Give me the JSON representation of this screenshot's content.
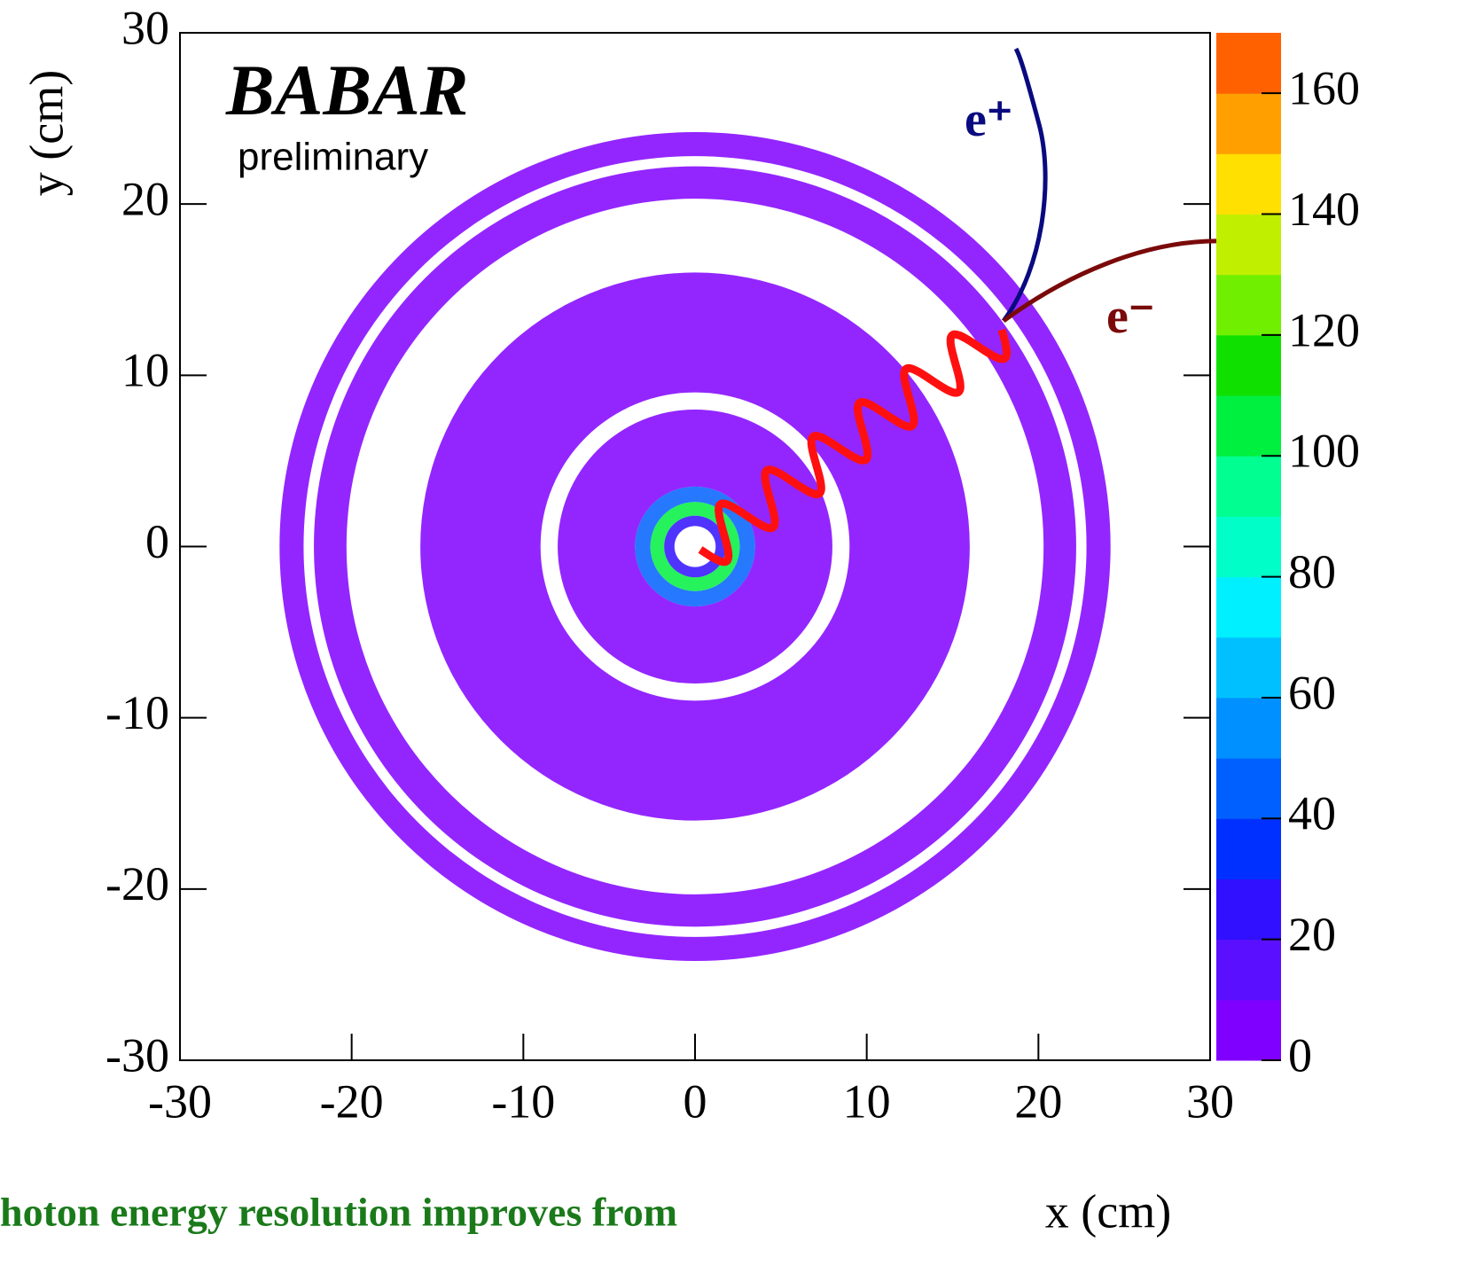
{
  "chart_data": {
    "type": "heatmap",
    "xlabel": "x (cm)",
    "ylabel": "y (cm)",
    "xlim": [
      -30,
      30
    ],
    "ylim": [
      -30,
      30
    ],
    "xticks": [
      -30,
      -20,
      -10,
      0,
      10,
      20,
      30
    ],
    "yticks": [
      -30,
      -20,
      -10,
      0,
      10,
      20,
      30
    ],
    "zlim": [
      0,
      170
    ],
    "zticks": [
      0,
      20,
      40,
      60,
      80,
      100,
      120,
      140,
      160
    ],
    "palette": [
      "#8000ff",
      "#5a10ff",
      "#3010ff",
      "#0030ff",
      "#0060ff",
      "#0090ff",
      "#00c0ff",
      "#00f0ff",
      "#00ffc8",
      "#00ff90",
      "#00f040",
      "#10e000",
      "#70f000",
      "#c0f000",
      "#ffe000",
      "#ffa000",
      "#ff6000"
    ],
    "regions": [
      {
        "r_inner": 22.8,
        "r_outer": 24.2,
        "value": 5
      },
      {
        "r_inner": 20.3,
        "r_outer": 22.2,
        "value": 6
      },
      {
        "r_inner": 9,
        "r_outer": 16,
        "value": 5
      },
      {
        "r_inner": 3.5,
        "r_outer": 8,
        "value": 8
      },
      {
        "r_inner": 2.6,
        "r_outer": 3.5,
        "value": 45
      },
      {
        "r_inner": 1.8,
        "r_outer": 2.6,
        "value": 100
      },
      {
        "r_inner": 1.2,
        "r_outer": 1.8,
        "value": 20
      }
    ],
    "annotations": {
      "experiment": "BABAR",
      "status": "preliminary",
      "positron": "e⁺",
      "electron": "e⁻",
      "caption": "hoton energy resolution improves from"
    }
  }
}
